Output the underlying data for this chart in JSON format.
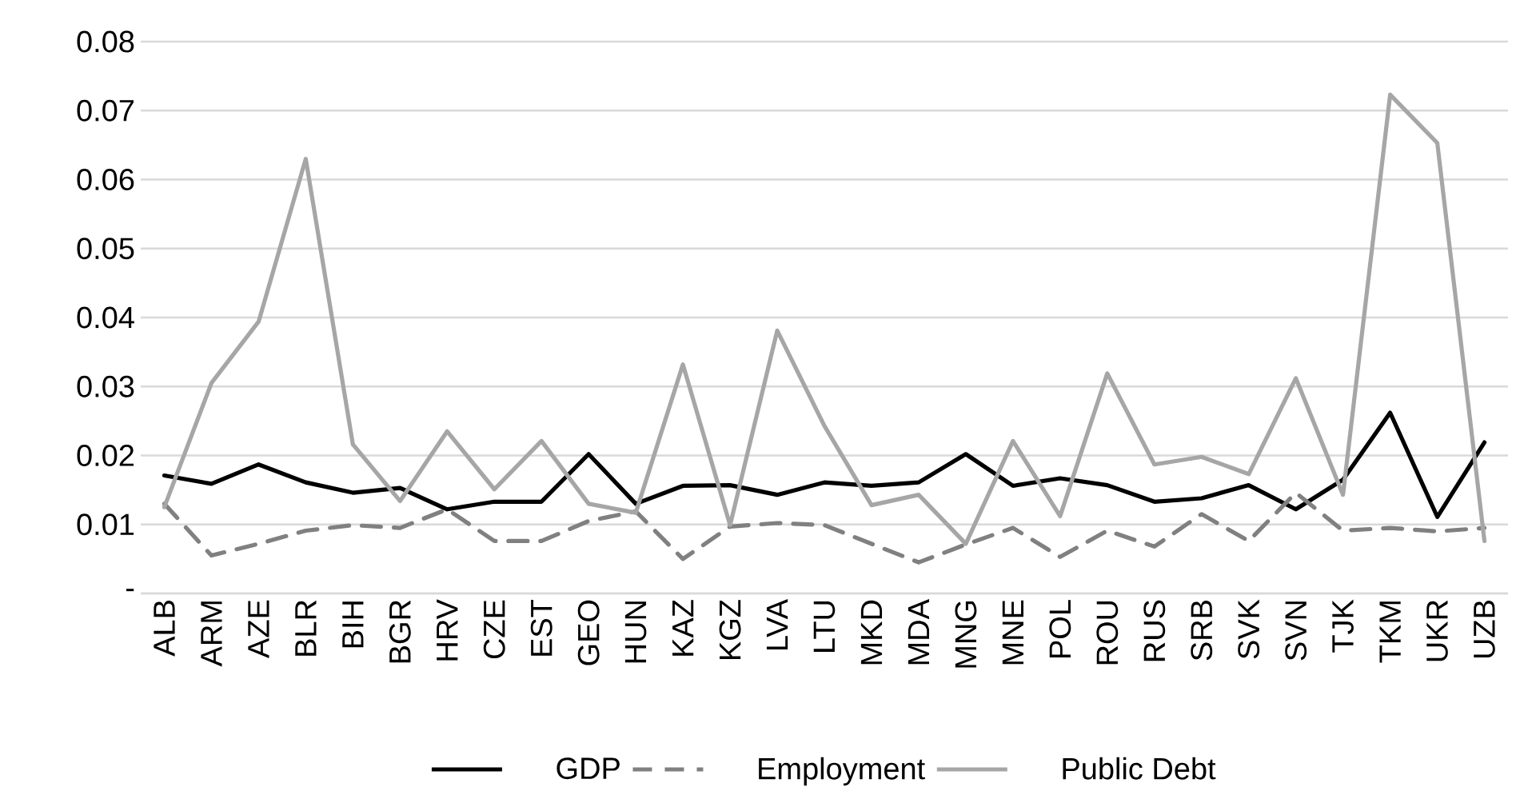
{
  "chart_data": {
    "type": "line",
    "categories": [
      "ALB",
      "ARM",
      "AZE",
      "BLR",
      "BIH",
      "BGR",
      "HRV",
      "CZE",
      "EST",
      "GEO",
      "HUN",
      "KAZ",
      "KGZ",
      "LVA",
      "LTU",
      "MKD",
      "MDA",
      "MNG",
      "MNE",
      "POL",
      "ROU",
      "RUS",
      "SRB",
      "SVK",
      "SVN",
      "TJK",
      "TKM",
      "UKR",
      "UZB"
    ],
    "series": [
      {
        "name": "GDP",
        "color": "#000000",
        "line_style": "solid",
        "values": [
          0.0171,
          0.0159,
          0.0187,
          0.0161,
          0.0146,
          0.0153,
          0.0122,
          0.0133,
          0.0133,
          0.0202,
          0.013,
          0.0156,
          0.0157,
          0.0143,
          0.0161,
          0.0156,
          0.0161,
          0.0202,
          0.0156,
          0.0167,
          0.0157,
          0.0133,
          0.0138,
          0.0157,
          0.0122,
          0.0165,
          0.0262,
          0.0111,
          0.0219
        ]
      },
      {
        "name": "Employment",
        "color": "#808080",
        "line_style": "dashed",
        "values": [
          0.013,
          0.0055,
          0.0072,
          0.0091,
          0.0099,
          0.0095,
          0.0122,
          0.0076,
          0.0076,
          0.0105,
          0.0119,
          0.005,
          0.0097,
          0.0102,
          0.0099,
          0.0072,
          0.0045,
          0.0071,
          0.0095,
          0.0053,
          0.0091,
          0.0068,
          0.0115,
          0.0076,
          0.0146,
          0.0091,
          0.0095,
          0.009,
          0.0095
        ]
      },
      {
        "name": "Public Debt",
        "color": "#a6a6a6",
        "line_style": "solid",
        "values": [
          0.0125,
          0.0305,
          0.0394,
          0.063,
          0.0216,
          0.0134,
          0.0235,
          0.0151,
          0.0221,
          0.013,
          0.0117,
          0.0332,
          0.0099,
          0.0381,
          0.0243,
          0.0128,
          0.0143,
          0.0072,
          0.0221,
          0.0112,
          0.0319,
          0.0187,
          0.0198,
          0.0173,
          0.0312,
          0.0143,
          0.0723,
          0.0653,
          0.0076
        ]
      }
    ],
    "ylim": [
      0,
      0.08
    ],
    "yticks": [
      {
        "value": 0,
        "label": "-"
      },
      0.01,
      0.02,
      0.03,
      0.04,
      0.05,
      0.06,
      0.07,
      0.08
    ],
    "grid": "y",
    "legend": "bottom",
    "marker": "none"
  }
}
